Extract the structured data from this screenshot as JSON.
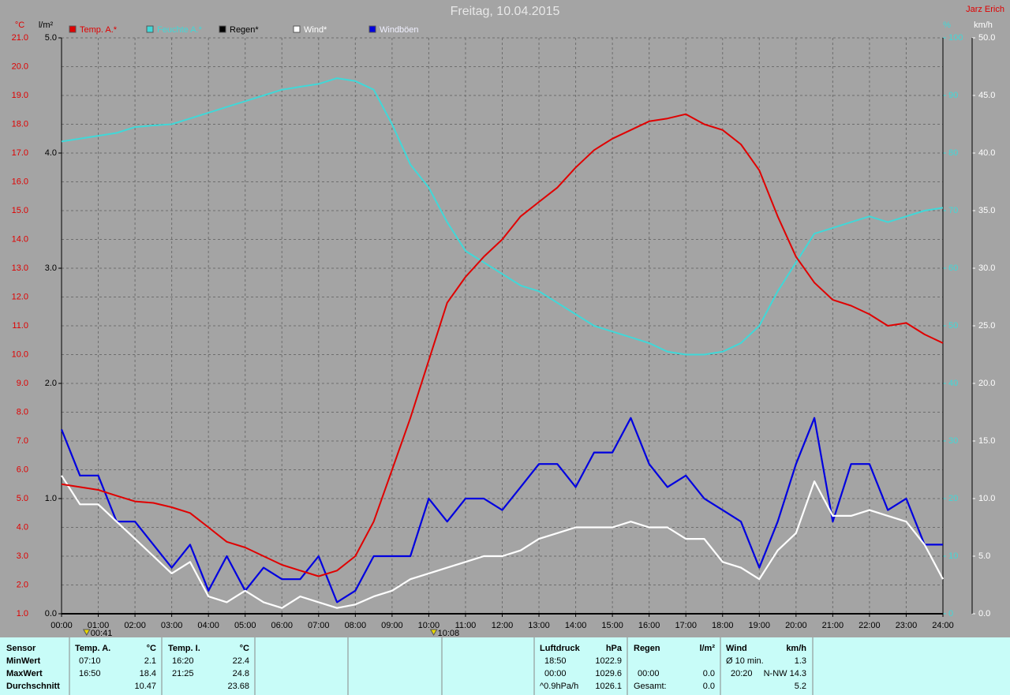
{
  "chart_data": {
    "type": "line",
    "title": "Freitag, 10.04.2015",
    "author": "Jarz Erich",
    "y_unit": "°C",
    "y2_unit": "%",
    "y3_unit": "l/m²",
    "y4_unit": "km/h",
    "grid": true,
    "x": [
      "00:00",
      "00:30",
      "01:00",
      "01:30",
      "02:00",
      "02:30",
      "03:00",
      "03:30",
      "04:00",
      "04:30",
      "05:00",
      "05:30",
      "06:00",
      "06:30",
      "07:00",
      "07:30",
      "08:00",
      "08:30",
      "09:00",
      "09:30",
      "10:00",
      "10:30",
      "11:00",
      "11:30",
      "12:00",
      "12:30",
      "13:00",
      "13:30",
      "14:00",
      "14:30",
      "15:00",
      "15:30",
      "16:00",
      "16:30",
      "17:00",
      "17:30",
      "18:00",
      "18:30",
      "19:00",
      "19:30",
      "20:00",
      "20:30",
      "21:00",
      "21:30",
      "22:00",
      "22:30",
      "23:00",
      "23:30",
      "24:00"
    ],
    "xticks": [
      "00:00",
      "01:00",
      "02:00",
      "03:00",
      "04:00",
      "05:00",
      "06:00",
      "07:00",
      "08:00",
      "09:00",
      "10:00",
      "11:00",
      "12:00",
      "13:00",
      "14:00",
      "15:00",
      "16:00",
      "17:00",
      "18:00",
      "19:00",
      "20:00",
      "21:00",
      "22:00",
      "23:00",
      "24:00"
    ],
    "markers": [
      "00:41",
      "10:08"
    ],
    "ylim": [
      1,
      21
    ],
    "yticks": [
      {
        "value": 1,
        "label": "1.0"
      },
      {
        "value": 2,
        "label": "2.0"
      },
      {
        "value": 3,
        "label": "3.0"
      },
      {
        "value": 4,
        "label": "4.0"
      },
      {
        "value": 5,
        "label": "5.0"
      },
      {
        "value": 6,
        "label": "6.0"
      },
      {
        "value": 7,
        "label": "7.0"
      },
      {
        "value": 8,
        "label": "8.0"
      },
      {
        "value": 9,
        "label": "9.0"
      },
      {
        "value": 10,
        "label": "10.0"
      },
      {
        "value": 11,
        "label": "11.0"
      },
      {
        "value": 12,
        "label": "12.0"
      },
      {
        "value": 13,
        "label": "13.0"
      },
      {
        "value": 14,
        "label": "14.0"
      },
      {
        "value": 15,
        "label": "15.0"
      },
      {
        "value": 16,
        "label": "16.0"
      },
      {
        "value": 17,
        "label": "17.0"
      },
      {
        "value": 18,
        "label": "18.0"
      },
      {
        "value": 19,
        "label": "19.0"
      },
      {
        "value": 20,
        "label": "20.0"
      },
      {
        "value": 21,
        "label": "21.0"
      }
    ],
    "y2lim": [
      0,
      100
    ],
    "y2ticks": [
      0,
      10,
      20,
      30,
      40,
      50,
      60,
      70,
      80,
      90,
      100
    ],
    "y3lim": [
      0,
      5
    ],
    "y3ticks": [
      {
        "value": 0,
        "label": "0.0"
      },
      {
        "value": 1,
        "label": "1.0"
      },
      {
        "value": 2,
        "label": "2.0"
      },
      {
        "value": 3,
        "label": "3.0"
      },
      {
        "value": 4,
        "label": "4.0"
      },
      {
        "value": 5,
        "label": "5.0"
      }
    ],
    "y4lim": [
      0,
      50
    ],
    "y4ticks": [
      {
        "value": 0,
        "label": "0.0"
      },
      {
        "value": 5,
        "label": "5.0"
      },
      {
        "value": 10,
        "label": "10.0"
      },
      {
        "value": 15,
        "label": "15.0"
      },
      {
        "value": 20,
        "label": "20.0"
      },
      {
        "value": 25,
        "label": "25.0"
      },
      {
        "value": 30,
        "label": "30.0"
      },
      {
        "value": 35,
        "label": "35.0"
      },
      {
        "value": 40,
        "label": "40.0"
      },
      {
        "value": 45,
        "label": "45.0"
      },
      {
        "value": 50,
        "label": "50.0"
      }
    ],
    "series": [
      {
        "name": "Temp. A.*",
        "color": "#e00000",
        "axis": "y",
        "values": [
          5.5,
          5.4,
          5.3,
          5.1,
          4.9,
          4.85,
          4.7,
          4.5,
          4.0,
          3.5,
          3.3,
          3.0,
          2.7,
          2.5,
          2.3,
          2.5,
          3.0,
          4.2,
          6.0,
          7.8,
          9.8,
          11.8,
          12.7,
          13.4,
          14.0,
          14.8,
          15.3,
          15.8,
          16.5,
          17.1,
          17.5,
          17.8,
          18.1,
          18.2,
          18.35,
          18.0,
          17.8,
          17.3,
          16.4,
          14.8,
          13.4,
          12.5,
          11.9,
          11.7,
          11.4,
          11.0,
          11.1,
          10.7,
          10.4
        ]
      },
      {
        "name": "Feuchte A.*",
        "color": "#40d8d8",
        "axis": "y2",
        "values": [
          82,
          82.5,
          83,
          83.5,
          84.5,
          84.8,
          85,
          86,
          87,
          88,
          89,
          90,
          91,
          91.5,
          92,
          93,
          92.5,
          91,
          85,
          78,
          74,
          68,
          63,
          61,
          59,
          57,
          56,
          54,
          52,
          50,
          49,
          48,
          47,
          45.5,
          45,
          45,
          45.5,
          47,
          50,
          56,
          61,
          66,
          67,
          68,
          69,
          68,
          69,
          70,
          70.5
        ]
      },
      {
        "name": "Regen*",
        "color": "#000000",
        "axis": "y3",
        "values": [
          0,
          0,
          0,
          0,
          0,
          0,
          0,
          0,
          0,
          0,
          0,
          0,
          0,
          0,
          0,
          0,
          0,
          0,
          0,
          0,
          0,
          0,
          0,
          0,
          0,
          0,
          0,
          0,
          0,
          0,
          0,
          0,
          0,
          0,
          0,
          0,
          0,
          0,
          0,
          0,
          0,
          0,
          0,
          0,
          0,
          0,
          0,
          0,
          0
        ]
      },
      {
        "name": "Wind*",
        "color": "#ffffff",
        "axis": "y4",
        "values": [
          12,
          9.5,
          9.5,
          8,
          6.5,
          5,
          3.5,
          4.5,
          1.5,
          1,
          2,
          1,
          0.5,
          1.5,
          1,
          0.5,
          0.8,
          1.5,
          2,
          3,
          3.5,
          4,
          4.5,
          5,
          5,
          5.5,
          6.5,
          7,
          7.5,
          7.5,
          7.5,
          8,
          7.5,
          7.5,
          6.5,
          6.5,
          4.5,
          4,
          3,
          5.5,
          7,
          11.5,
          8.5,
          8.5,
          9,
          8.5,
          8,
          6,
          3
        ]
      },
      {
        "name": "Windböen",
        "color": "#0000e0",
        "axis": "y4",
        "values": [
          16,
          12,
          12,
          8,
          8,
          6,
          4,
          6,
          2,
          5,
          2,
          4,
          3,
          3,
          5,
          1,
          2,
          5,
          5,
          5,
          10,
          8,
          10,
          10,
          9,
          11,
          13,
          13,
          11,
          14,
          14,
          17,
          13,
          11,
          12,
          10,
          9,
          8,
          4,
          8,
          13,
          17,
          8,
          13,
          13,
          9,
          10,
          6,
          6
        ]
      }
    ]
  },
  "summary": {
    "row_labels": [
      "Sensor",
      "MinWert",
      "MaxWert",
      "Durchschnitt"
    ],
    "temp_a": {
      "header": "Temp. A.",
      "unit": "°C",
      "min_time": "07:10",
      "min": "2.1",
      "max_time": "16:50",
      "max": "18.4",
      "avg": "10.47"
    },
    "temp_i": {
      "header": "Temp. I.",
      "unit": "°C",
      "min_time": "16:20",
      "min": "22.4",
      "max_time": "21:25",
      "max": "24.8",
      "avg": "23.68"
    },
    "pressure": {
      "header": "Luftdruck",
      "unit": "hPa",
      "min_time": "18:50",
      "min": "1022.9",
      "max_time": "00:00",
      "max": "1029.6",
      "trend": "^0.9hPa/h",
      "avg": "1026.1"
    },
    "rain": {
      "header": "Regen",
      "unit": "l/m²",
      "max_time": "00:00",
      "max": "0.0",
      "total_label": "Gesamt:",
      "total": "0.0"
    },
    "wind": {
      "header": "Wind",
      "unit": "km/h",
      "avg_label": "Ø 10 min.",
      "avg": "1.3",
      "max_time": "20:20",
      "max": "N-NW 14.3",
      "mean": "5.2"
    }
  }
}
